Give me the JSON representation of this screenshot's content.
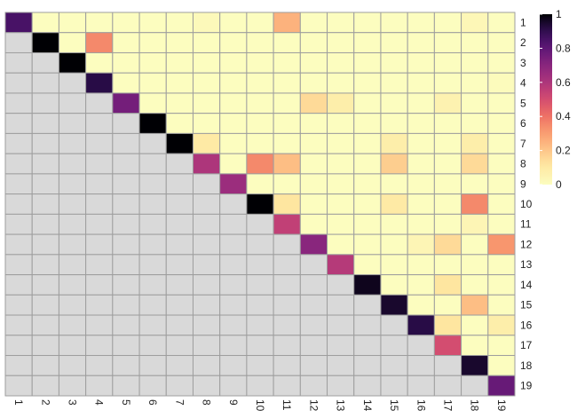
{
  "chart_data": {
    "type": "heatmap",
    "title": "",
    "xlabel": "",
    "ylabel": "",
    "row_labels": [
      "1",
      "2",
      "3",
      "4",
      "5",
      "6",
      "7",
      "8",
      "9",
      "10",
      "11",
      "12",
      "13",
      "14",
      "15",
      "16",
      "17",
      "18",
      "19"
    ],
    "col_labels": [
      "1",
      "2",
      "3",
      "4",
      "5",
      "6",
      "7",
      "8",
      "9",
      "10",
      "11",
      "12",
      "13",
      "14",
      "15",
      "16",
      "17",
      "18",
      "19"
    ],
    "lower_triangle": "masked (grey)",
    "values": [
      [
        0.85,
        0,
        0,
        0,
        0,
        0,
        0,
        0.02,
        0,
        0,
        0.25,
        0,
        0,
        0,
        0,
        0,
        0,
        0.03,
        0
      ],
      [
        null,
        1.0,
        0,
        0.35,
        0,
        0,
        0,
        0,
        0,
        0,
        0,
        0,
        0,
        0,
        0,
        0,
        0,
        0,
        0
      ],
      [
        null,
        null,
        1.0,
        0,
        0,
        0,
        0,
        0,
        0,
        0,
        0,
        0,
        0,
        0,
        0,
        0,
        0,
        0,
        0
      ],
      [
        null,
        null,
        null,
        0.92,
        0,
        0,
        0,
        0,
        0,
        0,
        0,
        0,
        0,
        0,
        0,
        0,
        0,
        0,
        0.01
      ],
      [
        null,
        null,
        null,
        null,
        0.75,
        0,
        0,
        0,
        0,
        0,
        0,
        0.15,
        0.08,
        0,
        0,
        0,
        0.06,
        0,
        0
      ],
      [
        null,
        null,
        null,
        null,
        null,
        1.0,
        0,
        0,
        0,
        0,
        0,
        0,
        0,
        0,
        0,
        0,
        0,
        0,
        0
      ],
      [
        null,
        null,
        null,
        null,
        null,
        null,
        1.0,
        0.1,
        0,
        0,
        0,
        0,
        0,
        0,
        0.08,
        0,
        0,
        0.08,
        0
      ],
      [
        null,
        null,
        null,
        null,
        null,
        null,
        null,
        0.6,
        0,
        0.35,
        0.22,
        0,
        0,
        0,
        0.18,
        0,
        0,
        0.15,
        0
      ],
      [
        null,
        null,
        null,
        null,
        null,
        null,
        null,
        null,
        0.65,
        0,
        0,
        0,
        0,
        0,
        0,
        0,
        0,
        0,
        0
      ],
      [
        null,
        null,
        null,
        null,
        null,
        null,
        null,
        null,
        null,
        1.0,
        0.12,
        0,
        0,
        0,
        0.1,
        0,
        0,
        0.35,
        0
      ],
      [
        null,
        null,
        null,
        null,
        null,
        null,
        null,
        null,
        null,
        null,
        0.55,
        0,
        0,
        0,
        0,
        0,
        0,
        0.04,
        0
      ],
      [
        null,
        null,
        null,
        null,
        null,
        null,
        null,
        null,
        null,
        null,
        null,
        0.7,
        0,
        0,
        0,
        0.04,
        0.15,
        0,
        0.32
      ],
      [
        null,
        null,
        null,
        null,
        null,
        null,
        null,
        null,
        null,
        null,
        null,
        null,
        0.58,
        0,
        0,
        0,
        0,
        0,
        0
      ],
      [
        null,
        null,
        null,
        null,
        null,
        null,
        null,
        null,
        null,
        null,
        null,
        null,
        null,
        0.97,
        0,
        0,
        0.12,
        0,
        0
      ],
      [
        null,
        null,
        null,
        null,
        null,
        null,
        null,
        null,
        null,
        null,
        null,
        null,
        null,
        null,
        0.95,
        0,
        0,
        0.22,
        0
      ],
      [
        null,
        null,
        null,
        null,
        null,
        null,
        null,
        null,
        null,
        null,
        null,
        null,
        null,
        null,
        null,
        0.92,
        0.12,
        0,
        0.08
      ],
      [
        null,
        null,
        null,
        null,
        null,
        null,
        null,
        null,
        null,
        null,
        null,
        null,
        null,
        null,
        null,
        null,
        0.5,
        0,
        0
      ],
      [
        null,
        null,
        null,
        null,
        null,
        null,
        null,
        null,
        null,
        null,
        null,
        null,
        null,
        null,
        null,
        null,
        null,
        0.95,
        0
      ],
      [
        null,
        null,
        null,
        null,
        null,
        null,
        null,
        null,
        null,
        null,
        null,
        null,
        null,
        null,
        null,
        null,
        null,
        null,
        0.78
      ]
    ],
    "legend": {
      "type": "colorbar",
      "placement": "top-right",
      "range": [
        0,
        1
      ],
      "ticks": [
        "1",
        "0.8",
        "0.6",
        "0.4",
        "0.2",
        "0"
      ],
      "tick_values": [
        1,
        0.8,
        0.6,
        0.4,
        0.2,
        0
      ]
    },
    "colors": {
      "scale": "magma (reversed)",
      "masked": "#d9d9d9",
      "cell_border": "#9e9e9e"
    }
  }
}
